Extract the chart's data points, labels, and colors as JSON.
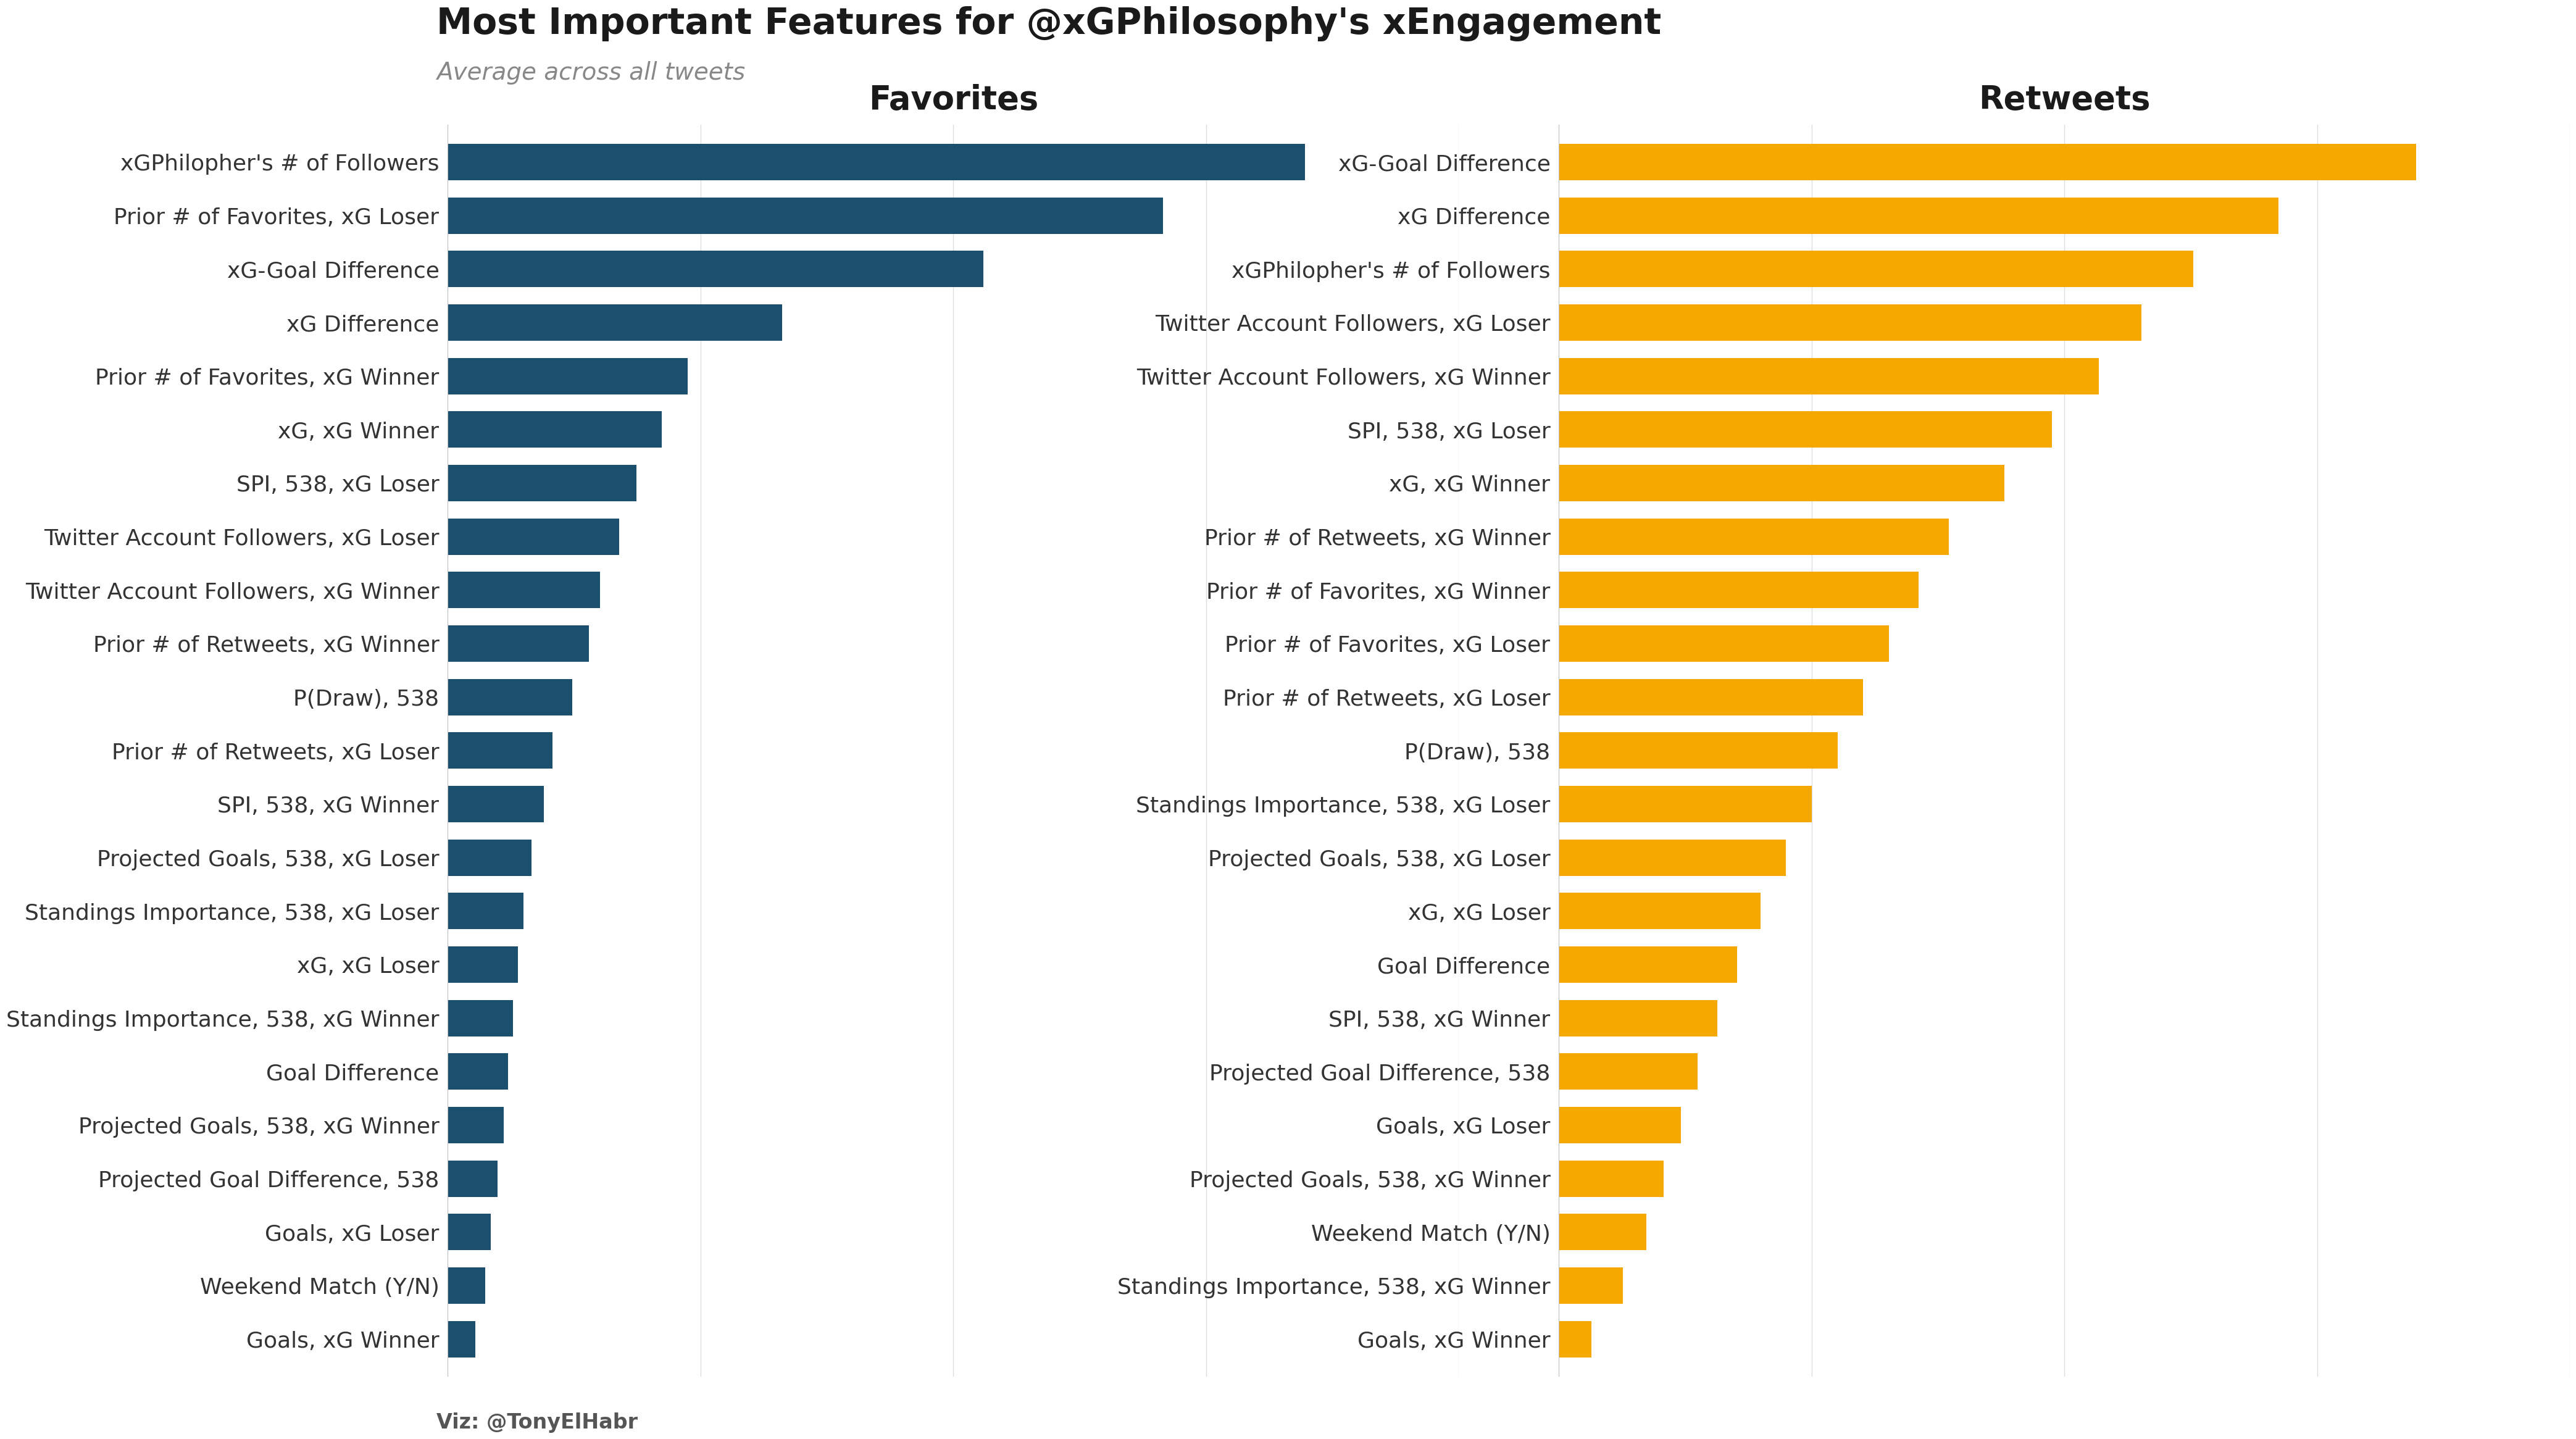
{
  "title": "Most Important Features for @xGPhilosophy's xEngagement",
  "subtitle": "Average across all tweets",
  "footer": "Viz: @TonyElHabr",
  "favorites_title": "Favorites",
  "retweets_title": "Retweets",
  "favorites_color": "#1a4f6e",
  "retweets_color": "#f5a800",
  "bg_color": "#ffffff",
  "favorites_features": [
    "xGPhilopher's # of Followers",
    "Prior # of Favorites, xG Loser",
    "xG-Goal Difference",
    "xG Difference",
    "Prior # of Favorites, xG Winner",
    "xG, xG Winner",
    "SPI, 538, xG Loser",
    "Twitter Account Followers, xG Loser",
    "Twitter Account Followers, xG Winner",
    "Prior # of Retweets, xG Winner",
    "P(Draw), 538",
    "Prior # of Retweets, xG Loser",
    "SPI, 538, xG Winner",
    "Projected Goals, 538, xG Loser",
    "Standings Importance, 538, xG Loser",
    "xG, xG Loser",
    "Standings Importance, 538, xG Winner",
    "Goal Difference",
    "Projected Goals, 538, xG Winner",
    "Projected Goal Difference, 538",
    "Goals, xG Loser",
    "Weekend Match (Y/N)",
    "Goals, xG Winner"
  ],
  "favorites_values": [
    1.0,
    0.835,
    0.625,
    0.39,
    0.28,
    0.25,
    0.22,
    0.2,
    0.178,
    0.165,
    0.145,
    0.122,
    0.112,
    0.098,
    0.088,
    0.082,
    0.076,
    0.07,
    0.065,
    0.058,
    0.05,
    0.044,
    0.032
  ],
  "retweets_features": [
    "xG-Goal Difference",
    "xG Difference",
    "xGPhilopher's # of Followers",
    "Twitter Account Followers, xG Loser",
    "Twitter Account Followers, xG Winner",
    "SPI, 538, xG Loser",
    "xG, xG Winner",
    "Prior # of Retweets, xG Winner",
    "Prior # of Favorites, xG Winner",
    "Prior # of Favorites, xG Loser",
    "Prior # of Retweets, xG Loser",
    "P(Draw), 538",
    "Standings Importance, 538, xG Loser",
    "Projected Goals, 538, xG Loser",
    "xG, xG Loser",
    "Goal Difference",
    "SPI, 538, xG Winner",
    "Projected Goal Difference, 538",
    "Goals, xG Loser",
    "Projected Goals, 538, xG Winner",
    "Weekend Match (Y/N)",
    "Standings Importance, 538, xG Winner",
    "Goals, xG Winner"
  ],
  "retweets_values": [
    1.0,
    0.84,
    0.74,
    0.68,
    0.63,
    0.575,
    0.52,
    0.455,
    0.42,
    0.385,
    0.355,
    0.325,
    0.295,
    0.265,
    0.235,
    0.208,
    0.185,
    0.162,
    0.142,
    0.122,
    0.102,
    0.075,
    0.038
  ],
  "title_fontsize": 42,
  "subtitle_fontsize": 28,
  "label_fontsize": 26,
  "section_title_fontsize": 38,
  "footer_fontsize": 24,
  "bar_height": 0.68
}
